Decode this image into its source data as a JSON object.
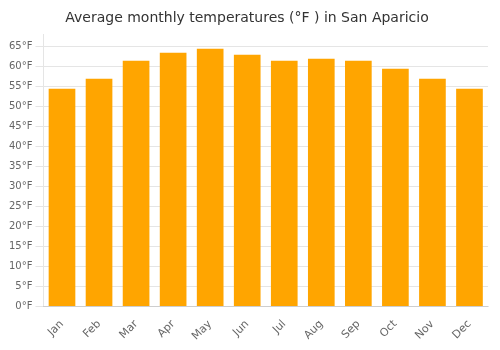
{
  "chart_data": {
    "type": "bar",
    "title": "Average monthly temperatures (°F ) in San Aparicio",
    "categories": [
      "Jan",
      "Feb",
      "Mar",
      "Apr",
      "May",
      "Jun",
      "Jul",
      "Aug",
      "Sep",
      "Oct",
      "Nov",
      "Dec"
    ],
    "values": [
      54.5,
      57.0,
      61.5,
      63.5,
      64.5,
      63.0,
      61.5,
      62.0,
      61.5,
      59.5,
      57.0,
      54.5
    ],
    "color": "#FFA500",
    "ylim": [
      0,
      68
    ],
    "yticks": [
      {
        "value": 0,
        "label": "0°F"
      },
      {
        "value": 5,
        "label": "5°F"
      },
      {
        "value": 10,
        "label": "10°F"
      },
      {
        "value": 15,
        "label": "15°F"
      },
      {
        "value": 20,
        "label": "20°F"
      },
      {
        "value": 25,
        "label": "25°F"
      },
      {
        "value": 30,
        "label": "30°F"
      },
      {
        "value": 35,
        "label": "35°F"
      },
      {
        "value": 40,
        "label": "40°F"
      },
      {
        "value": 45,
        "label": "45°F"
      },
      {
        "value": 50,
        "label": "50°F"
      },
      {
        "value": 55,
        "label": "55°F"
      },
      {
        "value": 60,
        "label": "60°F"
      },
      {
        "value": 65,
        "label": "65°F"
      }
    ],
    "grid": true
  }
}
